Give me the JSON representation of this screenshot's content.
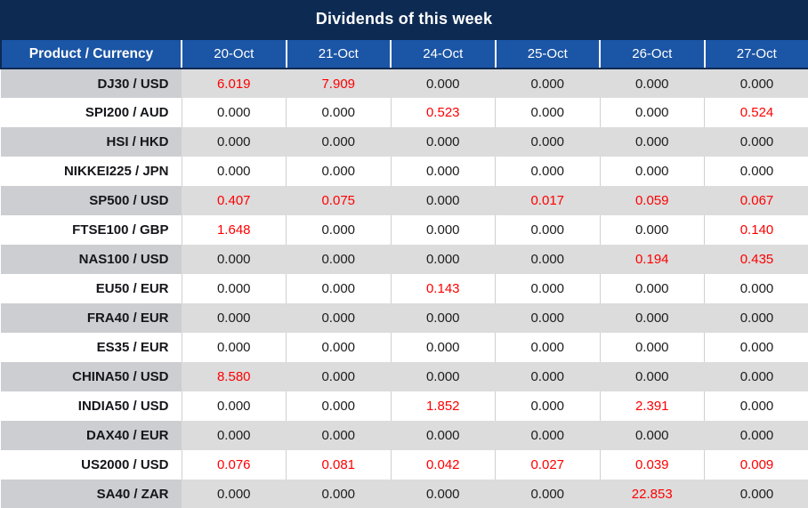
{
  "title": "Dividends of this week",
  "colors": {
    "title_bar": "#0d2a52",
    "header_blue": "#1b55a5",
    "row_gray": "#dcdcdc",
    "product_col_gray": "#cdced2",
    "highlight_red": "#fe0000",
    "text_dark": "#1d1d1d"
  },
  "table": {
    "header": [
      "Product / Currency",
      "20-Oct",
      "21-Oct",
      "24-Oct",
      "25-Oct",
      "26-Oct",
      "27-Oct"
    ],
    "rows": [
      {
        "product": "DJ30 / USD",
        "values": [
          "6.019",
          "7.909",
          "0.000",
          "0.000",
          "0.000",
          "0.000"
        ],
        "highlight": [
          true,
          true,
          false,
          false,
          false,
          false
        ]
      },
      {
        "product": "SPI200 / AUD",
        "values": [
          "0.000",
          "0.000",
          "0.523",
          "0.000",
          "0.000",
          "0.524"
        ],
        "highlight": [
          false,
          false,
          true,
          false,
          false,
          true
        ]
      },
      {
        "product": "HSI / HKD",
        "values": [
          "0.000",
          "0.000",
          "0.000",
          "0.000",
          "0.000",
          "0.000"
        ],
        "highlight": [
          false,
          false,
          false,
          false,
          false,
          false
        ]
      },
      {
        "product": "NIKKEI225 / JPN",
        "values": [
          "0.000",
          "0.000",
          "0.000",
          "0.000",
          "0.000",
          "0.000"
        ],
        "highlight": [
          false,
          false,
          false,
          false,
          false,
          false
        ]
      },
      {
        "product": "SP500 / USD",
        "values": [
          "0.407",
          "0.075",
          "0.000",
          "0.017",
          "0.059",
          "0.067"
        ],
        "highlight": [
          true,
          true,
          false,
          true,
          true,
          true
        ]
      },
      {
        "product": "FTSE100 / GBP",
        "values": [
          "1.648",
          "0.000",
          "0.000",
          "0.000",
          "0.000",
          "0.140"
        ],
        "highlight": [
          true,
          false,
          false,
          false,
          false,
          true
        ]
      },
      {
        "product": "NAS100 / USD",
        "values": [
          "0.000",
          "0.000",
          "0.000",
          "0.000",
          "0.194",
          "0.435"
        ],
        "highlight": [
          false,
          false,
          false,
          false,
          true,
          true
        ]
      },
      {
        "product": "EU50 / EUR",
        "values": [
          "0.000",
          "0.000",
          "0.143",
          "0.000",
          "0.000",
          "0.000"
        ],
        "highlight": [
          false,
          false,
          true,
          false,
          false,
          false
        ]
      },
      {
        "product": "FRA40 / EUR",
        "values": [
          "0.000",
          "0.000",
          "0.000",
          "0.000",
          "0.000",
          "0.000"
        ],
        "highlight": [
          false,
          false,
          false,
          false,
          false,
          false
        ]
      },
      {
        "product": "ES35 / EUR",
        "values": [
          "0.000",
          "0.000",
          "0.000",
          "0.000",
          "0.000",
          "0.000"
        ],
        "highlight": [
          false,
          false,
          false,
          false,
          false,
          false
        ]
      },
      {
        "product": "CHINA50 / USD",
        "values": [
          "8.580",
          "0.000",
          "0.000",
          "0.000",
          "0.000",
          "0.000"
        ],
        "highlight": [
          true,
          false,
          false,
          false,
          false,
          false
        ]
      },
      {
        "product": "INDIA50 / USD",
        "values": [
          "0.000",
          "0.000",
          "1.852",
          "0.000",
          "2.391",
          "0.000"
        ],
        "highlight": [
          false,
          false,
          true,
          false,
          true,
          false
        ]
      },
      {
        "product": "DAX40 / EUR",
        "values": [
          "0.000",
          "0.000",
          "0.000",
          "0.000",
          "0.000",
          "0.000"
        ],
        "highlight": [
          false,
          false,
          false,
          false,
          false,
          false
        ]
      },
      {
        "product": "US2000 / USD",
        "values": [
          "0.076",
          "0.081",
          "0.042",
          "0.027",
          "0.039",
          "0.009"
        ],
        "highlight": [
          true,
          true,
          true,
          true,
          true,
          true
        ]
      },
      {
        "product": "SA40 / ZAR",
        "values": [
          "0.000",
          "0.000",
          "0.000",
          "0.000",
          "22.853",
          "0.000"
        ],
        "highlight": [
          false,
          false,
          false,
          false,
          true,
          false
        ]
      }
    ]
  }
}
